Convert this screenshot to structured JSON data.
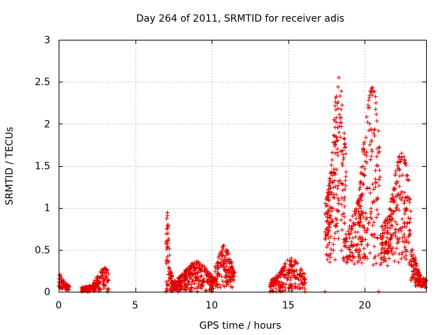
{
  "chart_data": {
    "type": "scatter",
    "title": "Day 264 of 2011, SRMTID for receiver adis",
    "xlabel": "GPS time / hours",
    "ylabel": "SRMTID / TECUs",
    "xlim": [
      0,
      24
    ],
    "ylim": [
      0,
      3
    ],
    "xticks": [
      0,
      5,
      10,
      15,
      20
    ],
    "yticks": [
      0,
      0.5,
      1,
      1.5,
      2,
      2.5,
      3
    ],
    "xtick_labels": [
      "0",
      "5",
      "10",
      "15",
      "20"
    ],
    "ytick_labels": [
      "0",
      "0.5",
      "1",
      "1.5",
      "2",
      "2.5",
      "3"
    ],
    "grid": true,
    "legend": "none",
    "series": [
      {
        "name": "SRMTID",
        "marker": "+",
        "color": "#e00000",
        "clusters": [
          {
            "x_range": [
              0.0,
              0.7
            ],
            "base": 0.08,
            "peak": 0.2,
            "min": 0.02,
            "count": 70,
            "peak_at": 0.1
          },
          {
            "x_range": [
              1.5,
              3.3
            ],
            "base": 0.05,
            "peak": 0.28,
            "min": 0.0,
            "count": 160,
            "peak_at": 3.0
          },
          {
            "x_range": [
              7.0,
              7.4
            ],
            "base": 0.2,
            "peak": 0.94,
            "min": 0.0,
            "count": 60,
            "peak_at": 7.1
          },
          {
            "x_range": [
              7.4,
              10.2
            ],
            "base": 0.1,
            "peak": 0.36,
            "min": 0.0,
            "count": 300,
            "peak_at": 9.0
          },
          {
            "x_range": [
              10.2,
              11.5
            ],
            "base": 0.25,
            "peak": 0.55,
            "min": 0.05,
            "count": 140,
            "peak_at": 10.8
          },
          {
            "x_range": [
              13.8,
              16.1
            ],
            "base": 0.12,
            "peak": 0.4,
            "min": 0.0,
            "count": 200,
            "peak_at": 15.2
          },
          {
            "x_range": [
              17.4,
              18.8
            ],
            "base": 1.0,
            "peak": 2.55,
            "min": 0.35,
            "count": 220,
            "peak_at": 18.3
          },
          {
            "x_range": [
              18.8,
              21.0
            ],
            "base": 0.8,
            "peak": 2.43,
            "min": 0.3,
            "count": 260,
            "peak_at": 20.5
          },
          {
            "x_range": [
              21.0,
              23.0
            ],
            "base": 0.75,
            "peak": 1.65,
            "min": 0.3,
            "count": 240,
            "peak_at": 22.4
          },
          {
            "x_range": [
              23.0,
              24.0
            ],
            "base": 0.15,
            "peak": 0.5,
            "min": 0.05,
            "count": 120,
            "peak_at": 23.1
          }
        ],
        "zero_points_x": [
          1.5,
          3.2,
          7.0,
          7.8,
          13.8,
          14.2,
          16.1,
          17.4,
          20.9
        ]
      }
    ]
  }
}
